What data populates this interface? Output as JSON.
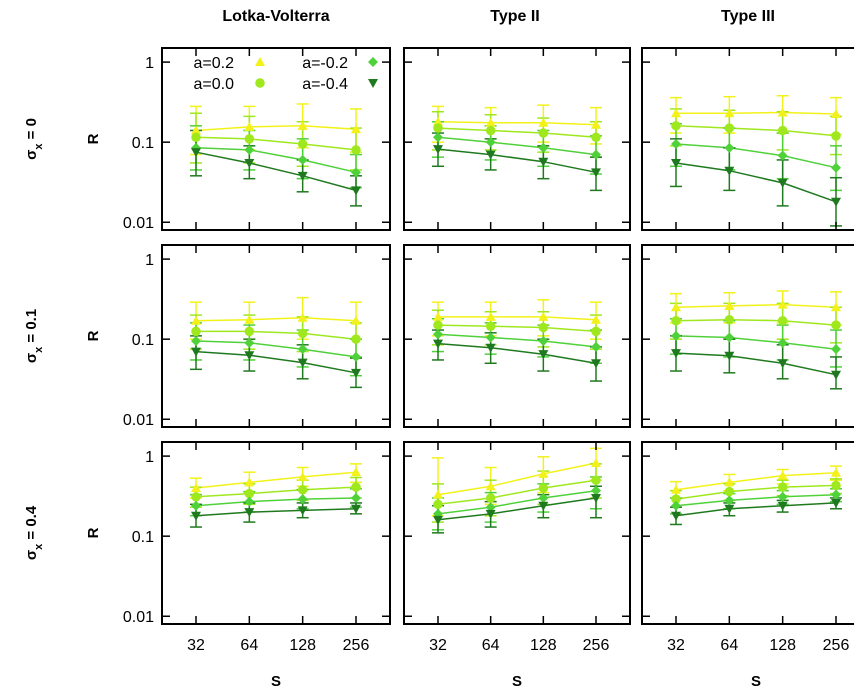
{
  "chart_data": {
    "type": "line",
    "panel_columns": [
      "Lotka-Volterra",
      "Type II",
      "Type III"
    ],
    "panel_rows": [
      "σx = 0",
      "σx = 0.1",
      "σx = 0.4"
    ],
    "row_label_parts": [
      {
        "sigma": "σ",
        "sub": "x",
        "rest": " = 0"
      },
      {
        "sigma": "σ",
        "sub": "x",
        "rest": " = 0.1"
      },
      {
        "sigma": "σ",
        "sub": "x",
        "rest": " = 0.4"
      }
    ],
    "xlabel": "S",
    "ylabel": "R",
    "x": [
      32,
      64,
      128,
      256
    ],
    "x_tick_labels": [
      "32",
      "64",
      "128",
      "256"
    ],
    "xscale": "log2",
    "yscale": "log",
    "ylim": [
      0.008,
      1.5
    ],
    "y_tick_labels": [
      "1",
      "0.1",
      "0.01"
    ],
    "y_ticks": [
      1,
      0.1,
      0.01
    ],
    "legend": {
      "placement": "top-left of first panel",
      "entries": [
        {
          "label": "a=0.2",
          "marker": "triangle-up"
        },
        {
          "label": "a=0.0",
          "marker": "circle"
        },
        {
          "label": "a=-0.2",
          "marker": "diamond"
        },
        {
          "label": "a=-0.4",
          "marker": "triangle-down"
        }
      ]
    },
    "series_colors": [
      "#f2f21a",
      "#9fe81e",
      "#4fd13a",
      "#1f7a1f"
    ],
    "panels": [
      {
        "row": 0,
        "col": 0,
        "series": [
          {
            "name": "a=0.2",
            "values": [
              0.14,
              0.155,
              0.16,
              0.145
            ],
            "lo": [
              0.07,
              0.08,
              0.085,
              0.075
            ],
            "hi": [
              0.28,
              0.28,
              0.3,
              0.26
            ]
          },
          {
            "name": "a=0.0",
            "values": [
              0.115,
              0.11,
              0.095,
              0.08
            ],
            "lo": [
              0.055,
              0.055,
              0.05,
              0.045
            ],
            "hi": [
              0.23,
              0.21,
              0.18,
              0.15
            ]
          },
          {
            "name": "a=-0.2",
            "values": [
              0.085,
              0.08,
              0.06,
              0.042
            ],
            "lo": [
              0.045,
              0.045,
              0.035,
              0.027
            ],
            "hi": [
              0.16,
              0.14,
              0.11,
              0.07
            ]
          },
          {
            "name": "a=-0.4",
            "values": [
              0.075,
              0.055,
              0.038,
              0.025
            ],
            "lo": [
              0.038,
              0.035,
              0.024,
              0.016
            ],
            "hi": [
              0.14,
              0.09,
              0.06,
              0.038
            ]
          }
        ]
      },
      {
        "row": 0,
        "col": 1,
        "series": [
          {
            "name": "a=0.2",
            "values": [
              0.18,
              0.175,
              0.175,
              0.165
            ],
            "lo": [
              0.1,
              0.1,
              0.1,
              0.095
            ],
            "hi": [
              0.28,
              0.27,
              0.29,
              0.27
            ]
          },
          {
            "name": "a=0.0",
            "values": [
              0.15,
              0.14,
              0.13,
              0.115
            ],
            "lo": [
              0.08,
              0.08,
              0.075,
              0.065
            ],
            "hi": [
              0.24,
              0.22,
              0.2,
              0.18
            ]
          },
          {
            "name": "a=-0.2",
            "values": [
              0.115,
              0.1,
              0.085,
              0.07
            ],
            "lo": [
              0.065,
              0.06,
              0.05,
              0.04
            ],
            "hi": [
              0.18,
              0.16,
              0.14,
              0.12
            ]
          },
          {
            "name": "a=-0.4",
            "values": [
              0.082,
              0.07,
              0.057,
              0.042
            ],
            "lo": [
              0.05,
              0.045,
              0.035,
              0.025
            ],
            "hi": [
              0.13,
              0.11,
              0.09,
              0.065
            ]
          }
        ]
      },
      {
        "row": 0,
        "col": 2,
        "series": [
          {
            "name": "a=0.2",
            "values": [
              0.23,
              0.23,
              0.235,
              0.225
            ],
            "lo": [
              0.13,
              0.13,
              0.13,
              0.125
            ],
            "hi": [
              0.36,
              0.37,
              0.38,
              0.36
            ]
          },
          {
            "name": "a=0.0",
            "values": [
              0.16,
              0.15,
              0.14,
              0.12
            ],
            "lo": [
              0.09,
              0.085,
              0.08,
              0.07
            ],
            "hi": [
              0.26,
              0.25,
              0.24,
              0.21
            ]
          },
          {
            "name": "a=-0.2",
            "values": [
              0.095,
              0.085,
              0.068,
              0.048
            ],
            "lo": [
              0.05,
              0.045,
              0.035,
              0.025
            ],
            "hi": [
              0.17,
              0.15,
              0.13,
              0.09
            ]
          },
          {
            "name": "a=-0.4",
            "values": [
              0.055,
              0.044,
              0.031,
              0.018
            ],
            "lo": [
              0.028,
              0.025,
              0.016,
              0.009
            ],
            "hi": [
              0.11,
              0.085,
              0.06,
              0.036
            ]
          }
        ]
      },
      {
        "row": 1,
        "col": 0,
        "series": [
          {
            "name": "a=0.2",
            "values": [
              0.17,
              0.175,
              0.185,
              0.17
            ],
            "lo": [
              0.1,
              0.1,
              0.1,
              0.1
            ],
            "hi": [
              0.29,
              0.29,
              0.33,
              0.29
            ]
          },
          {
            "name": "a=0.0",
            "values": [
              0.125,
              0.125,
              0.118,
              0.1
            ],
            "lo": [
              0.075,
              0.075,
              0.07,
              0.06
            ],
            "hi": [
              0.2,
              0.2,
              0.19,
              0.16
            ]
          },
          {
            "name": "a=-0.2",
            "values": [
              0.095,
              0.09,
              0.075,
              0.06
            ],
            "lo": [
              0.055,
              0.055,
              0.045,
              0.035
            ],
            "hi": [
              0.16,
              0.15,
              0.13,
              0.1
            ]
          },
          {
            "name": "a=-0.4",
            "values": [
              0.07,
              0.063,
              0.051,
              0.038
            ],
            "lo": [
              0.042,
              0.04,
              0.032,
              0.025
            ],
            "hi": [
              0.11,
              0.1,
              0.085,
              0.058
            ]
          }
        ]
      },
      {
        "row": 1,
        "col": 1,
        "series": [
          {
            "name": "a=0.2",
            "values": [
              0.19,
              0.19,
              0.19,
              0.175
            ],
            "lo": [
              0.11,
              0.11,
              0.11,
              0.1
            ],
            "hi": [
              0.29,
              0.29,
              0.31,
              0.29
            ]
          },
          {
            "name": "a=0.0",
            "values": [
              0.15,
              0.145,
              0.14,
              0.125
            ],
            "lo": [
              0.085,
              0.085,
              0.08,
              0.075
            ],
            "hi": [
              0.23,
              0.22,
              0.22,
              0.2
            ]
          },
          {
            "name": "a=-0.2",
            "values": [
              0.115,
              0.105,
              0.095,
              0.08
            ],
            "lo": [
              0.07,
              0.065,
              0.06,
              0.05
            ],
            "hi": [
              0.18,
              0.16,
              0.15,
              0.13
            ]
          },
          {
            "name": "a=-0.4",
            "values": [
              0.088,
              0.078,
              0.065,
              0.05
            ],
            "lo": [
              0.055,
              0.05,
              0.04,
              0.03
            ],
            "hi": [
              0.13,
              0.12,
              0.1,
              0.08
            ]
          }
        ]
      },
      {
        "row": 1,
        "col": 2,
        "series": [
          {
            "name": "a=0.2",
            "values": [
              0.25,
              0.26,
              0.27,
              0.25
            ],
            "lo": [
              0.16,
              0.16,
              0.16,
              0.15
            ],
            "hi": [
              0.37,
              0.38,
              0.4,
              0.39
            ]
          },
          {
            "name": "a=0.0",
            "values": [
              0.17,
              0.175,
              0.17,
              0.15
            ],
            "lo": [
              0.1,
              0.1,
              0.1,
              0.09
            ],
            "hi": [
              0.28,
              0.28,
              0.28,
              0.25
            ]
          },
          {
            "name": "a=-0.2",
            "values": [
              0.11,
              0.105,
              0.09,
              0.075
            ],
            "lo": [
              0.065,
              0.06,
              0.055,
              0.045
            ],
            "hi": [
              0.18,
              0.17,
              0.15,
              0.13
            ]
          },
          {
            "name": "a=-0.4",
            "values": [
              0.067,
              0.062,
              0.05,
              0.036
            ],
            "lo": [
              0.04,
              0.038,
              0.032,
              0.024
            ],
            "hi": [
              0.11,
              0.1,
              0.085,
              0.06
            ]
          }
        ]
      },
      {
        "row": 2,
        "col": 0,
        "series": [
          {
            "name": "a=0.2",
            "values": [
              0.4,
              0.47,
              0.55,
              0.63
            ],
            "lo": [
              0.3,
              0.35,
              0.42,
              0.47
            ],
            "hi": [
              0.53,
              0.63,
              0.72,
              0.8
            ]
          },
          {
            "name": "a=0.0",
            "values": [
              0.31,
              0.34,
              0.38,
              0.41
            ],
            "lo": [
              0.23,
              0.25,
              0.28,
              0.3
            ],
            "hi": [
              0.41,
              0.45,
              0.5,
              0.54
            ]
          },
          {
            "name": "a=-0.2",
            "values": [
              0.24,
              0.27,
              0.29,
              0.3
            ],
            "lo": [
              0.18,
              0.2,
              0.22,
              0.23
            ],
            "hi": [
              0.33,
              0.36,
              0.38,
              0.39
            ]
          },
          {
            "name": "a=-0.4",
            "values": [
              0.18,
              0.2,
              0.21,
              0.22
            ],
            "lo": [
              0.13,
              0.15,
              0.17,
              0.19
            ],
            "hi": [
              0.25,
              0.26,
              0.26,
              0.26
            ]
          }
        ]
      },
      {
        "row": 2,
        "col": 1,
        "series": [
          {
            "name": "a=0.2",
            "values": [
              0.33,
              0.42,
              0.6,
              0.82
            ],
            "lo": [
              0.18,
              0.25,
              0.35,
              0.5
            ],
            "hi": [
              0.95,
              0.72,
              0.98,
              1.25
            ]
          },
          {
            "name": "a=0.0",
            "values": [
              0.25,
              0.3,
              0.4,
              0.5
            ],
            "lo": [
              0.15,
              0.18,
              0.25,
              0.3
            ],
            "hi": [
              0.45,
              0.5,
              0.65,
              0.8
            ]
          },
          {
            "name": "a=-0.2",
            "values": [
              0.19,
              0.23,
              0.3,
              0.37
            ],
            "lo": [
              0.12,
              0.15,
              0.2,
              0.22
            ],
            "hi": [
              0.3,
              0.35,
              0.45,
              0.55
            ]
          },
          {
            "name": "a=-0.4",
            "values": [
              0.16,
              0.19,
              0.24,
              0.3
            ],
            "lo": [
              0.11,
              0.13,
              0.17,
              0.17
            ],
            "hi": [
              0.24,
              0.27,
              0.33,
              0.42
            ]
          }
        ]
      },
      {
        "row": 2,
        "col": 2,
        "series": [
          {
            "name": "a=0.2",
            "values": [
              0.38,
              0.47,
              0.57,
              0.62
            ],
            "lo": [
              0.3,
              0.37,
              0.45,
              0.5
            ],
            "hi": [
              0.48,
              0.59,
              0.68,
              0.75
            ]
          },
          {
            "name": "a=0.0",
            "values": [
              0.29,
              0.36,
              0.41,
              0.43
            ],
            "lo": [
              0.23,
              0.28,
              0.32,
              0.34
            ],
            "hi": [
              0.37,
              0.45,
              0.5,
              0.52
            ]
          },
          {
            "name": "a=-0.2",
            "values": [
              0.24,
              0.28,
              0.31,
              0.33
            ],
            "lo": [
              0.19,
              0.22,
              0.25,
              0.27
            ],
            "hi": [
              0.3,
              0.34,
              0.37,
              0.39
            ]
          },
          {
            "name": "a=-0.4",
            "values": [
              0.18,
              0.22,
              0.24,
              0.26
            ],
            "lo": [
              0.14,
              0.18,
              0.2,
              0.22
            ],
            "hi": [
              0.23,
              0.26,
              0.28,
              0.3
            ]
          }
        ]
      }
    ]
  }
}
